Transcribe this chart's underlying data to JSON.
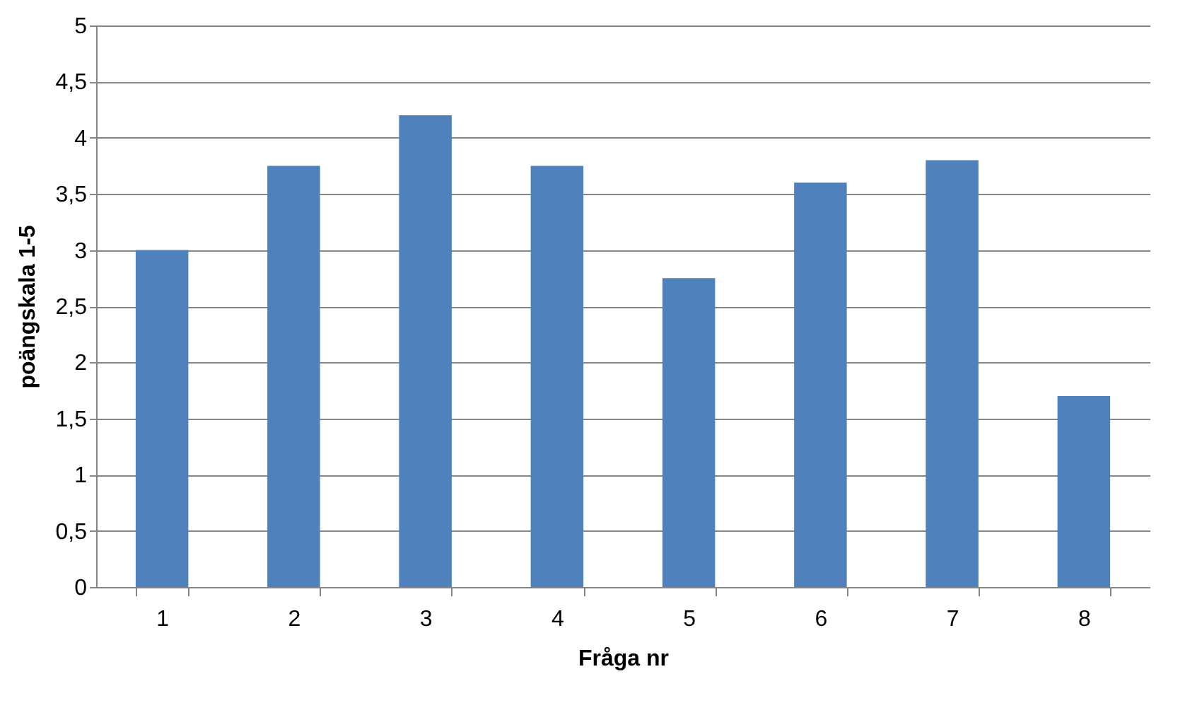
{
  "chart_data": {
    "type": "bar",
    "xlabel": "Fråga nr",
    "ylabel": "poängskala 1-5",
    "categories": [
      "1",
      "2",
      "3",
      "4",
      "5",
      "6",
      "7",
      "8"
    ],
    "values": [
      3.0,
      3.75,
      4.2,
      3.75,
      2.75,
      3.6,
      3.8,
      1.7
    ],
    "color": "#4f81bd",
    "ylim": [
      0,
      5
    ],
    "yticks": [
      0,
      {
        "value": 0.5,
        "label": "0,5"
      },
      1,
      {
        "value": 1.5,
        "label": "1,5"
      },
      2,
      {
        "value": 2.5,
        "label": "2,5"
      },
      3,
      {
        "value": 3.5,
        "label": "3,5"
      },
      4,
      {
        "value": 4.5,
        "label": "4,5"
      },
      5
    ],
    "grid": "y"
  }
}
